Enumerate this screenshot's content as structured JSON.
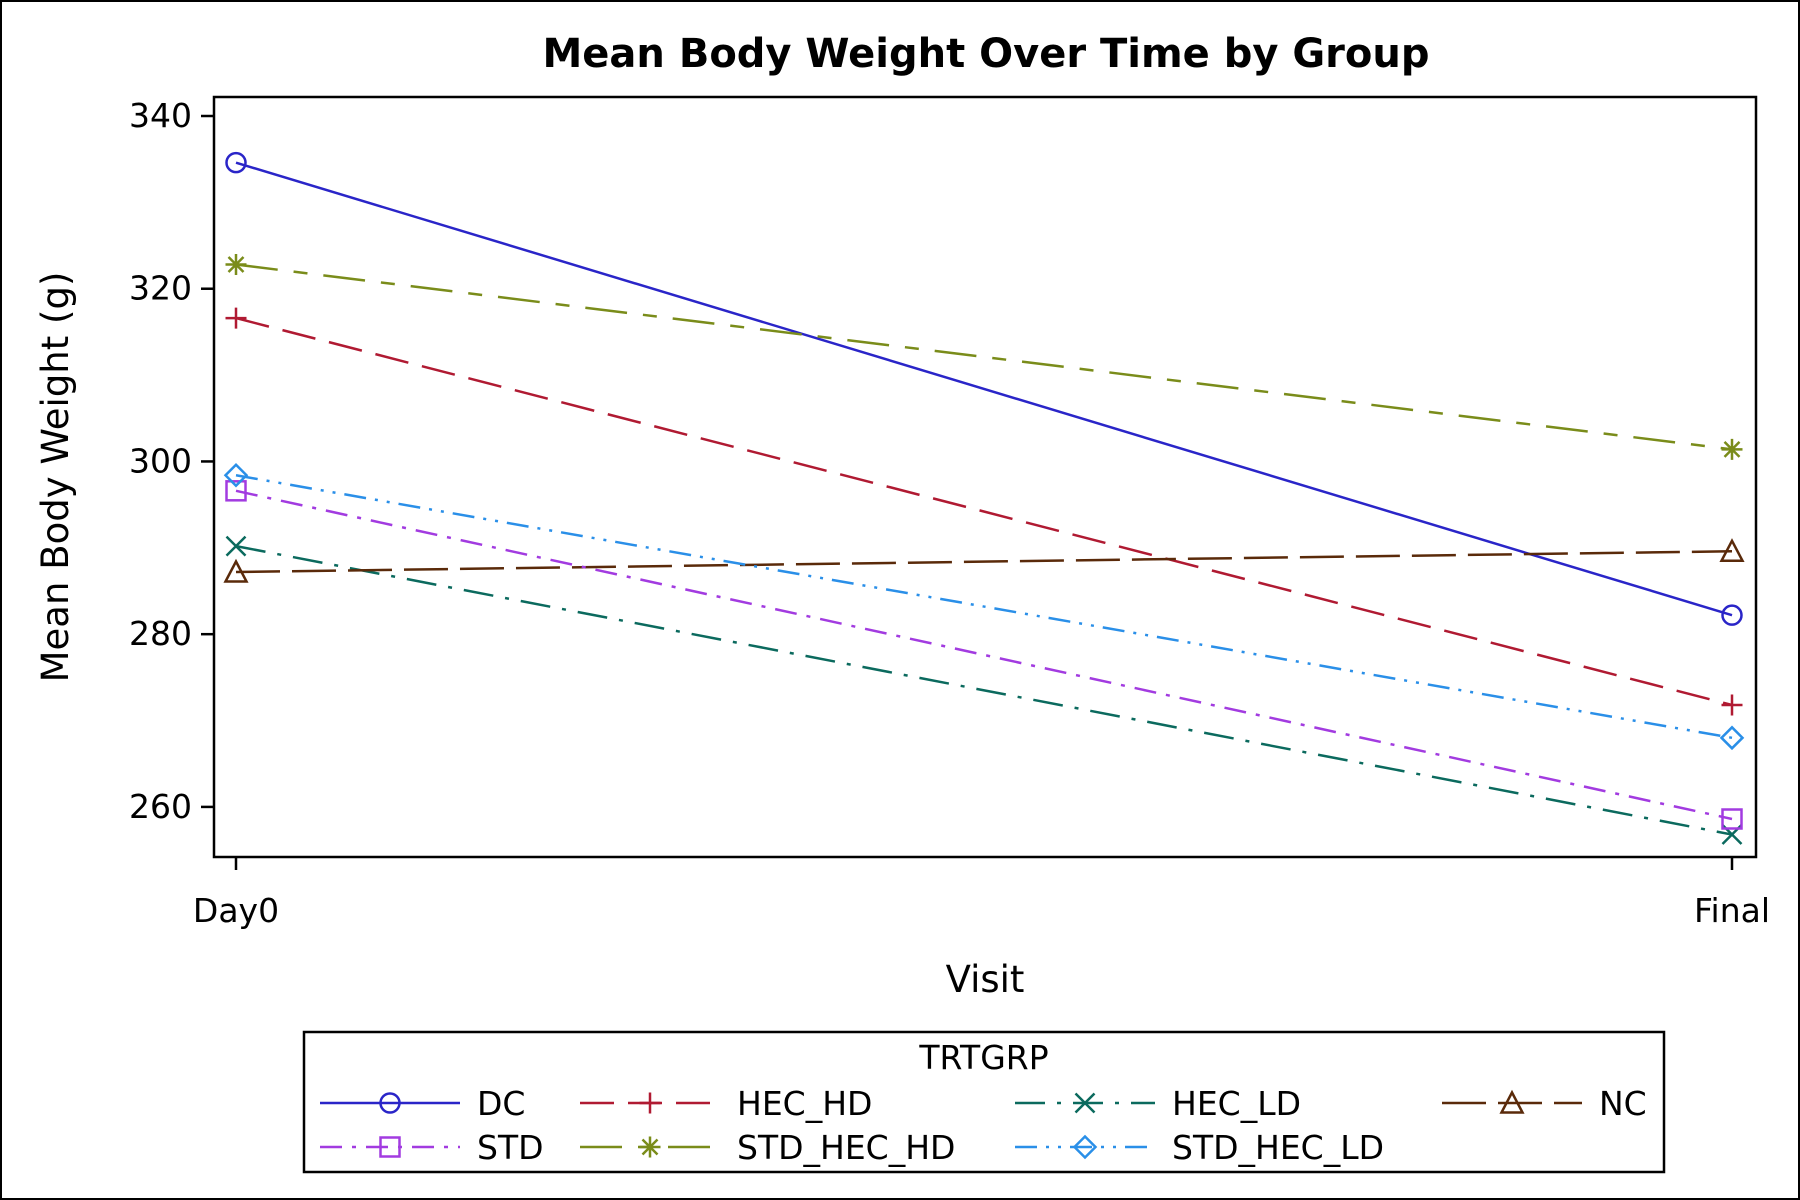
{
  "chart_data": {
    "type": "line",
    "title": "Mean Body Weight Over Time by Group",
    "xlabel": "Visit",
    "ylabel": "Mean Body Weight (g)",
    "categories": [
      "Day0",
      "Final"
    ],
    "ylim": [
      254.2,
      342.2
    ],
    "yticks": [
      260,
      280,
      300,
      320,
      340
    ],
    "legend_title": "TRTGRP",
    "legend_position": "bottom",
    "grid": false,
    "series": [
      {
        "name": "DC",
        "values": [
          334.6,
          282.2
        ],
        "color": "#2a25c8",
        "marker": "circle",
        "dash": "solid"
      },
      {
        "name": "HEC_HD",
        "values": [
          316.6,
          271.8
        ],
        "color": "#b01a32",
        "marker": "plus",
        "dash": "long"
      },
      {
        "name": "HEC_LD",
        "values": [
          290.2,
          256.8
        ],
        "color": "#0b6a5e",
        "marker": "x",
        "dash": "longdot"
      },
      {
        "name": "NC",
        "values": [
          287.2,
          289.6
        ],
        "color": "#5a2a0a",
        "marker": "triangle",
        "dash": "verylong"
      },
      {
        "name": "STD",
        "values": [
          296.6,
          258.6
        ],
        "color": "#a23be0",
        "marker": "square",
        "dash": "dashdot"
      },
      {
        "name": "STD_HEC_HD",
        "values": [
          322.8,
          301.4
        ],
        "color": "#7a8c1a",
        "marker": "asterisk",
        "dash": "longshort"
      },
      {
        "name": "STD_HEC_LD",
        "values": [
          298.4,
          268.0
        ],
        "color": "#2a8fe8",
        "marker": "diamond",
        "dash": "dashdotdot"
      }
    ]
  }
}
